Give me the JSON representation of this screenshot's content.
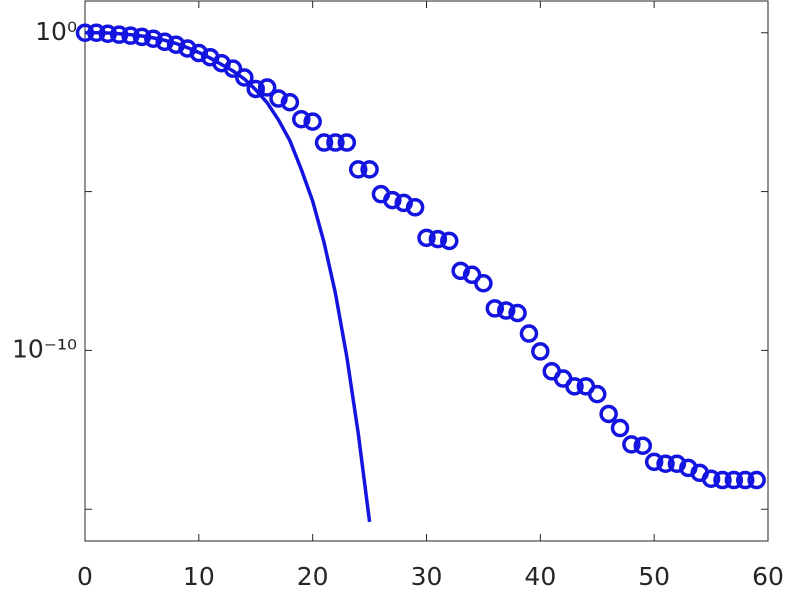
{
  "chart_data": {
    "type": "line",
    "ylog": true,
    "xlim": [
      0,
      60
    ],
    "xticks": [
      0,
      10,
      20,
      30,
      40,
      50,
      60
    ],
    "ylim": [
      1e-16,
      10
    ],
    "yticks": [
      {
        "value": 1e-15,
        "label": null
      },
      {
        "value": 1e-10,
        "label": "10⁻¹⁰"
      },
      {
        "value": 1e-05,
        "label": null
      },
      {
        "value": 1,
        "label": "10⁰"
      }
    ],
    "series": [
      {
        "marker": "circle",
        "color": "#1414e0",
        "x": [
          0,
          1,
          2,
          3,
          4,
          5,
          6,
          7,
          8,
          9,
          10,
          11,
          12,
          13,
          14,
          15,
          16,
          17,
          18,
          19,
          20,
          21,
          22,
          23,
          24,
          25,
          26,
          27,
          28,
          29,
          30,
          31,
          32,
          33,
          34,
          35,
          36,
          37,
          38,
          39,
          40,
          41,
          42,
          43,
          44,
          45,
          46,
          47,
          48,
          49,
          50,
          51,
          52,
          53,
          54,
          55,
          56,
          57,
          58,
          59
        ],
        "values": [
          1,
          1,
          0.93,
          0.87,
          0.81,
          0.74,
          0.65,
          0.52,
          0.42,
          0.32,
          0.23,
          0.17,
          0.11,
          0.074,
          0.039,
          0.017,
          0.019,
          0.0085,
          0.0065,
          0.0019,
          0.0016,
          0.00035,
          0.00035,
          0.00035,
          5e-05,
          5e-05,
          8.3e-06,
          5.4e-06,
          4.4e-06,
          3.2e-06,
          3.5e-07,
          3.2e-07,
          2.8e-07,
          3.2e-08,
          2.4e-08,
          1.3e-08,
          2.1e-09,
          1.8e-09,
          1.5e-09,
          3.4e-10,
          9.3e-11,
          2.2e-11,
          1.3e-11,
          7.4e-12,
          7.4e-12,
          4.2e-12,
          1e-12,
          3.6e-13,
          1.1e-13,
          1e-13,
          3.1e-14,
          2.7e-14,
          2.7e-14,
          2e-14,
          1.4e-14,
          9.1e-15,
          8.3e-15,
          8.3e-15,
          8.3e-15,
          8.3e-15
        ]
      },
      {
        "marker": "none",
        "color": "#1414e0",
        "x": [
          0,
          1,
          2,
          3,
          4,
          5,
          6,
          7,
          8,
          9,
          10,
          11,
          12,
          13,
          14,
          15,
          16,
          17,
          18,
          19,
          20,
          21,
          22,
          23,
          24,
          25
        ],
        "values": [
          1,
          1,
          0.98,
          0.93,
          0.87,
          0.79,
          0.69,
          0.58,
          0.46,
          0.34,
          0.24,
          0.16,
          0.1,
          0.063,
          0.035,
          0.016,
          0.0063,
          0.0018,
          0.0004,
          5e-05,
          5e-06,
          2.5e-07,
          6.3e-09,
          6.3e-11,
          2.5e-13,
          4e-16
        ]
      }
    ]
  }
}
